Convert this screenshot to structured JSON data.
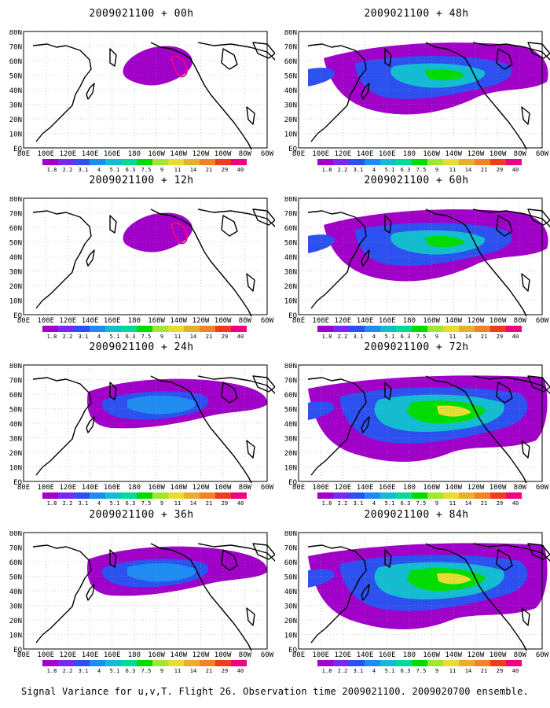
{
  "figure": {
    "caption": "Signal Variance for u,v,T. Flight 26. Observation time 2009021100. 2009020700 ensemble."
  },
  "axes": {
    "lat_labels": [
      "80N",
      "70N",
      "60N",
      "50N",
      "40N",
      "30N",
      "20N",
      "10N",
      "EQ"
    ],
    "lon_labels": [
      "80E",
      "100E",
      "120E",
      "140E",
      "160E",
      "180",
      "160W",
      "140W",
      "120W",
      "100W",
      "80W",
      "60W"
    ]
  },
  "colorbar": {
    "labels": [
      "1.8",
      "2.2",
      "3.1",
      "4",
      "5.1",
      "6.3",
      "7.5",
      "9",
      "11",
      "14",
      "21",
      "29",
      "40"
    ],
    "colors": [
      "#a000c8",
      "#7828f0",
      "#2d50f0",
      "#1e8cf0",
      "#14bcd2",
      "#00dc96",
      "#00dc00",
      "#a0e632",
      "#e6dc32",
      "#e6af2d",
      "#f08228",
      "#f03c1e",
      "#f00082"
    ]
  },
  "panels": [
    {
      "title": "2009021100 + 00h",
      "level": 0
    },
    {
      "title": "2009021100 + 48h",
      "level": 4
    },
    {
      "title": "2009021100 + 12h",
      "level": 1
    },
    {
      "title": "2009021100 + 60h",
      "level": 5
    },
    {
      "title": "2009021100 + 24h",
      "level": 2
    },
    {
      "title": "2009021100 + 72h",
      "level": 6
    },
    {
      "title": "2009021100 + 36h",
      "level": 3
    },
    {
      "title": "2009021100 + 84h",
      "level": 7
    }
  ]
}
